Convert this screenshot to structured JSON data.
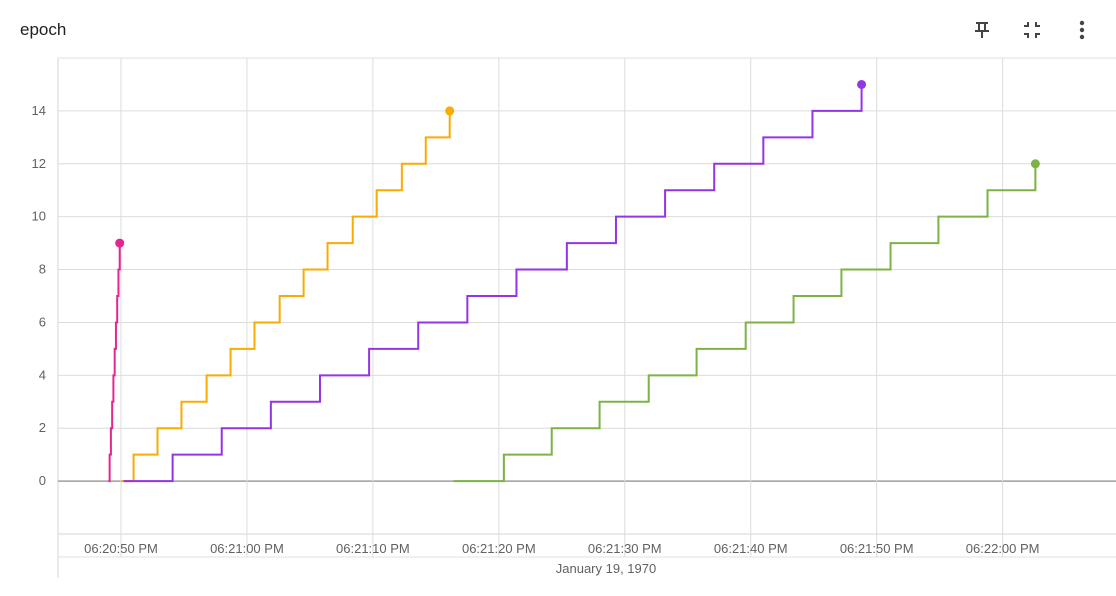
{
  "card": {
    "title": "epoch",
    "icons": [
      "pin-icon",
      "collapse-icon",
      "more-vert-icon"
    ]
  },
  "chart_data": {
    "type": "line",
    "title": "epoch",
    "xlabel": "January 19, 1970",
    "ylabel": "",
    "x_unit": "seconds past 06:20:45 PM",
    "xlim": [
      0,
      84
    ],
    "ylim": [
      -2,
      16
    ],
    "y_ticks": [
      0,
      2,
      4,
      6,
      8,
      10,
      12,
      14
    ],
    "x_ticks": [
      {
        "x": 5,
        "label": "06:20:50 PM"
      },
      {
        "x": 15,
        "label": "06:21:00 PM"
      },
      {
        "x": 25,
        "label": "06:21:10 PM"
      },
      {
        "x": 35,
        "label": "06:21:20 PM"
      },
      {
        "x": 45,
        "label": "06:21:30 PM"
      },
      {
        "x": 55,
        "label": "06:21:40 PM"
      },
      {
        "x": 65,
        "label": "06:21:50 PM"
      },
      {
        "x": 75,
        "label": "06:22:00 PM"
      }
    ],
    "grid": true,
    "legend": "none",
    "step": true,
    "series": [
      {
        "color": "#e52592",
        "x": [
          4.0,
          4.1,
          4.2,
          4.3,
          4.4,
          4.5,
          4.6,
          4.7,
          4.8,
          4.9
        ],
        "y": [
          0,
          1,
          2,
          3,
          4,
          5,
          6,
          7,
          8,
          9
        ]
      },
      {
        "color": "#f9ab00",
        "x": [
          5.0,
          6.0,
          7.9,
          9.8,
          11.8,
          13.7,
          15.6,
          17.6,
          19.5,
          21.4,
          23.4,
          25.3,
          27.3,
          29.2,
          31.1
        ],
        "y": [
          0,
          1,
          2,
          3,
          4,
          5,
          6,
          7,
          8,
          9,
          10,
          11,
          12,
          13,
          14
        ]
      },
      {
        "color": "#9334e6",
        "x": [
          5.2,
          9.1,
          13.0,
          16.9,
          20.8,
          24.7,
          28.6,
          32.5,
          36.4,
          40.4,
          44.3,
          48.2,
          52.1,
          56.0,
          59.9,
          63.8
        ],
        "y": [
          0,
          1,
          2,
          3,
          4,
          5,
          6,
          7,
          8,
          9,
          10,
          11,
          12,
          13,
          14,
          15
        ]
      },
      {
        "color": "#7cb342",
        "x": [
          31.4,
          35.4,
          39.2,
          43.0,
          46.9,
          50.7,
          54.6,
          58.4,
          62.2,
          66.1,
          69.9,
          73.8,
          77.6
        ],
        "y": [
          0,
          1,
          2,
          3,
          4,
          5,
          6,
          7,
          8,
          9,
          10,
          11,
          12
        ]
      }
    ]
  }
}
